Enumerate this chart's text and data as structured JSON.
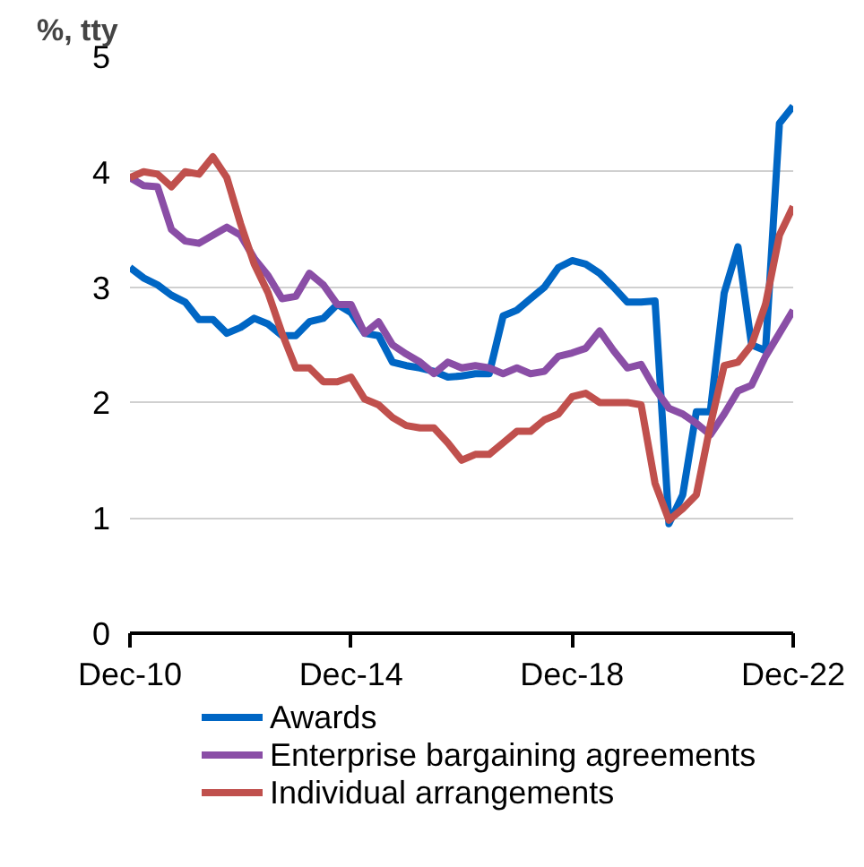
{
  "chart_data": {
    "type": "line",
    "ylabel": "%, tty",
    "x": [
      "2010-12",
      "2011-03",
      "2011-06",
      "2011-09",
      "2011-12",
      "2012-03",
      "2012-06",
      "2012-09",
      "2012-12",
      "2013-03",
      "2013-06",
      "2013-09",
      "2013-12",
      "2014-03",
      "2014-06",
      "2014-09",
      "2014-12",
      "2015-03",
      "2015-06",
      "2015-09",
      "2015-12",
      "2016-03",
      "2016-06",
      "2016-09",
      "2016-12",
      "2017-03",
      "2017-06",
      "2017-09",
      "2017-12",
      "2018-03",
      "2018-06",
      "2018-09",
      "2018-12",
      "2019-03",
      "2019-06",
      "2019-09",
      "2019-12",
      "2020-03",
      "2020-06",
      "2020-09",
      "2020-12",
      "2021-03",
      "2021-06",
      "2021-09",
      "2021-12",
      "2022-03",
      "2022-06",
      "2022-09",
      "2022-12"
    ],
    "series": [
      {
        "name": "Awards",
        "color": "#0066c4",
        "values": [
          3.17,
          3.08,
          3.02,
          2.93,
          2.87,
          2.72,
          2.72,
          2.6,
          2.65,
          2.73,
          2.68,
          2.58,
          2.58,
          2.7,
          2.73,
          2.85,
          2.78,
          2.6,
          2.58,
          2.35,
          2.32,
          2.3,
          2.27,
          2.22,
          2.23,
          2.25,
          2.25,
          2.75,
          2.8,
          2.9,
          3.0,
          3.17,
          3.23,
          3.2,
          3.12,
          3.0,
          2.87,
          2.87,
          2.88,
          0.95,
          1.2,
          1.92,
          1.92,
          2.95,
          3.35,
          2.5,
          2.45,
          4.42,
          4.57
        ]
      },
      {
        "name": "Enterprise bargaining agreements",
        "color": "#8a4ea6",
        "values": [
          3.95,
          3.88,
          3.87,
          3.5,
          3.4,
          3.38,
          3.45,
          3.52,
          3.45,
          3.25,
          3.1,
          2.9,
          2.92,
          3.12,
          3.02,
          2.85,
          2.85,
          2.6,
          2.7,
          2.5,
          2.42,
          2.35,
          2.25,
          2.35,
          2.3,
          2.32,
          2.3,
          2.25,
          2.3,
          2.25,
          2.27,
          2.4,
          2.43,
          2.47,
          2.62,
          2.45,
          2.3,
          2.33,
          2.12,
          1.95,
          1.9,
          1.82,
          1.72,
          1.9,
          2.1,
          2.15,
          2.4,
          2.6,
          2.8
        ]
      },
      {
        "name": "Individual arrangements",
        "color": "#c0504d",
        "values": [
          3.95,
          4.0,
          3.98,
          3.87,
          4.0,
          3.98,
          4.13,
          3.95,
          3.55,
          3.2,
          2.95,
          2.6,
          2.3,
          2.3,
          2.18,
          2.18,
          2.22,
          2.03,
          1.98,
          1.87,
          1.8,
          1.78,
          1.78,
          1.65,
          1.5,
          1.55,
          1.55,
          1.65,
          1.75,
          1.75,
          1.85,
          1.9,
          2.05,
          2.08,
          2.0,
          2.0,
          2.0,
          1.98,
          1.3,
          0.98,
          1.08,
          1.2,
          1.8,
          2.32,
          2.35,
          2.5,
          2.85,
          3.45,
          3.7
        ]
      }
    ],
    "xlim": [
      "2010-12",
      "2022-12"
    ],
    "xticks": [
      {
        "value": "2010-12",
        "label": "Dec-10"
      },
      {
        "value": "2014-12",
        "label": "Dec-14"
      },
      {
        "value": "2018-12",
        "label": "Dec-18"
      },
      {
        "value": "2022-12",
        "label": "Dec-22"
      }
    ],
    "ylim": [
      0,
      5
    ],
    "yticks": [
      0,
      1,
      2,
      3,
      4,
      5
    ],
    "grid": "y",
    "legend": "bottom",
    "line_style": "solid",
    "marker": "none"
  }
}
